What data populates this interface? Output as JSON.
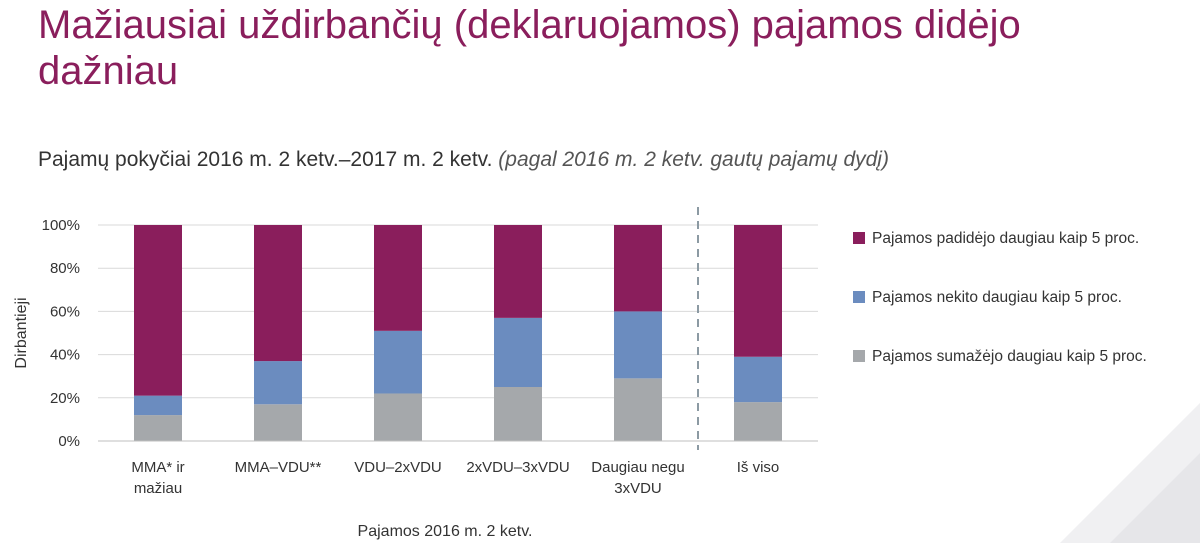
{
  "page": {
    "title": "Mažiausiai uždirbančių (deklaruojamos) pajamos didėjo dažniau",
    "subtitle_main": "Pajamų pokyčiai 2016 m. 2 ketv.–2017 m. 2 ketv.",
    "subtitle_note": "(pagal 2016 m. 2 ketv. gautų pajamų dydį)"
  },
  "chart_data": {
    "type": "bar",
    "stacked": true,
    "xlabel": "Pajamos 2016 m. 2 ketv.",
    "ylabel": "Dirbantieji",
    "ylim": [
      0,
      100
    ],
    "yticks": [
      "0%",
      "20%",
      "40%",
      "60%",
      "80%",
      "100%"
    ],
    "grid": true,
    "legend_position": "right",
    "categories": [
      [
        "MMA* ir",
        "mažiau"
      ],
      [
        "MMA–VDU**"
      ],
      [
        "VDU–2xVDU"
      ],
      [
        "2xVDU–3xVDU"
      ],
      [
        "Daugiau negu",
        "3xVDU"
      ],
      [
        "Iš viso"
      ]
    ],
    "separator_before_index": 5,
    "series": [
      {
        "name": "Pajamos sumažėjo daugiau kaip 5 proc.",
        "color": "#a5a8ab",
        "values": [
          12,
          17,
          22,
          25,
          29,
          18
        ]
      },
      {
        "name": "Pajamos nekito daugiau kaip 5 proc.",
        "color": "#6b8cbf",
        "values": [
          9,
          20,
          29,
          32,
          31,
          21
        ]
      },
      {
        "name": "Pajamos padidėjo daugiau kaip 5 proc.",
        "color": "#8a1e5c",
        "values": [
          79,
          63,
          49,
          43,
          40,
          61
        ]
      }
    ],
    "legend_order": [
      2,
      1,
      0
    ]
  }
}
